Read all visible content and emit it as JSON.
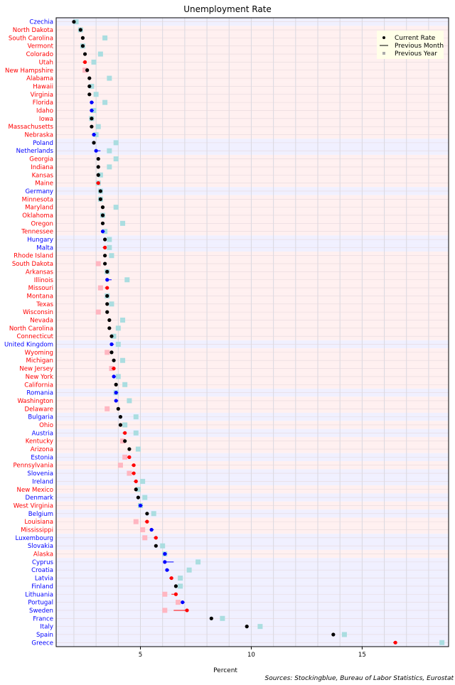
{
  "chart_data": {
    "type": "scatter",
    "title": "Unemployment Rate",
    "xlabel": "Percent",
    "ylabel": "",
    "xlim": [
      1.2,
      18.9
    ],
    "xticks": [
      5,
      10,
      15
    ],
    "grid": true,
    "legend_position": "top-right",
    "legend": [
      "Current Rate",
      "Previous Month",
      "Previous Year"
    ],
    "source": "Sources: Stockingblue, Bureau of Labor Statistics, Eurostat",
    "colors": {
      "us_label": "#ff0000",
      "eu_label": "#0000ff",
      "us_band": "#fff0f0",
      "eu_band": "#f0f0ff",
      "increase": "#ff0000",
      "decrease": "#0000ff",
      "unchanged": "#000000",
      "prev_year_higher": "#aadde0",
      "prev_year_lower": "#ffb6c1"
    },
    "categories": [
      "Czechia",
      "North Dakota",
      "South Carolina",
      "Vermont",
      "Colorado",
      "Utah",
      "New Hampshire",
      "Alabama",
      "Hawaii",
      "Virginia",
      "Florida",
      "Idaho",
      "Iowa",
      "Massachusetts",
      "Nebraska",
      "Poland",
      "Netherlands",
      "Georgia",
      "Indiana",
      "Kansas",
      "Maine",
      "Germany",
      "Minnesota",
      "Maryland",
      "Oklahoma",
      "Oregon",
      "Tennessee",
      "Hungary",
      "Malta",
      "Rhode Island",
      "South Dakota",
      "Arkansas",
      "Illinois",
      "Missouri",
      "Montana",
      "Texas",
      "Wisconsin",
      "Nevada",
      "North Carolina",
      "Connecticut",
      "United Kingdom",
      "Wyoming",
      "Michigan",
      "New Jersey",
      "New York",
      "California",
      "Romania",
      "Washington",
      "Delaware",
      "Bulgaria",
      "Ohio",
      "Austria",
      "Kentucky",
      "Arizona",
      "Estonia",
      "Pennsylvania",
      "Slovenia",
      "Ireland",
      "New Mexico",
      "Denmark",
      "West Virginia",
      "Belgium",
      "Louisiana",
      "Mississippi",
      "Luxembourg",
      "Slovakia",
      "Alaska",
      "Cyprus",
      "Croatia",
      "Latvia",
      "Finland",
      "Lithuania",
      "Portugal",
      "Sweden",
      "France",
      "Italy",
      "Spain",
      "Greece"
    ],
    "region": [
      "eu",
      "us",
      "us",
      "us",
      "us",
      "us",
      "us",
      "us",
      "us",
      "us",
      "us",
      "us",
      "us",
      "us",
      "us",
      "eu",
      "eu",
      "us",
      "us",
      "us",
      "us",
      "eu",
      "us",
      "us",
      "us",
      "us",
      "us",
      "eu",
      "eu",
      "us",
      "us",
      "us",
      "us",
      "us",
      "us",
      "us",
      "us",
      "us",
      "us",
      "us",
      "eu",
      "us",
      "us",
      "us",
      "us",
      "us",
      "eu",
      "us",
      "us",
      "eu",
      "us",
      "eu",
      "us",
      "us",
      "eu",
      "us",
      "eu",
      "eu",
      "us",
      "eu",
      "us",
      "eu",
      "us",
      "us",
      "eu",
      "eu",
      "us",
      "eu",
      "eu",
      "eu",
      "eu",
      "eu",
      "eu",
      "eu",
      "eu",
      "eu",
      "eu",
      "eu"
    ],
    "series": [
      {
        "name": "Current Rate",
        "values": [
          2.0,
          2.3,
          2.4,
          2.4,
          2.5,
          2.5,
          2.6,
          2.7,
          2.7,
          2.7,
          2.8,
          2.8,
          2.8,
          2.8,
          2.9,
          2.9,
          3.0,
          3.1,
          3.1,
          3.1,
          3.1,
          3.2,
          3.2,
          3.3,
          3.3,
          3.3,
          3.3,
          3.4,
          3.4,
          3.4,
          3.4,
          3.5,
          3.5,
          3.5,
          3.5,
          3.5,
          3.5,
          3.6,
          3.6,
          3.7,
          3.7,
          3.7,
          3.8,
          3.8,
          3.8,
          3.9,
          3.9,
          3.9,
          4.0,
          4.1,
          4.1,
          4.3,
          4.3,
          4.5,
          4.5,
          4.7,
          4.7,
          4.8,
          4.8,
          4.9,
          5.0,
          5.3,
          5.3,
          5.5,
          5.7,
          5.7,
          6.1,
          6.1,
          6.2,
          6.4,
          6.6,
          6.6,
          6.9,
          7.1,
          8.2,
          9.8,
          13.7,
          16.5
        ]
      },
      {
        "name": "Previous Month",
        "values": [
          2.0,
          2.3,
          2.4,
          2.4,
          2.5,
          2.4,
          2.6,
          2.7,
          2.7,
          2.7,
          2.9,
          2.9,
          2.8,
          2.8,
          3.0,
          2.9,
          3.2,
          3.1,
          3.1,
          3.1,
          3.0,
          3.2,
          3.2,
          3.3,
          3.3,
          3.3,
          3.4,
          3.4,
          3.3,
          3.4,
          3.4,
          3.5,
          3.7,
          3.4,
          3.5,
          3.5,
          3.5,
          3.6,
          3.6,
          3.7,
          3.8,
          3.7,
          3.8,
          3.7,
          3.9,
          3.9,
          4.0,
          4.0,
          4.0,
          4.1,
          4.1,
          4.2,
          4.3,
          4.5,
          4.4,
          4.6,
          4.6,
          4.7,
          4.8,
          4.9,
          5.1,
          5.3,
          5.2,
          5.6,
          5.6,
          5.7,
          6.2,
          6.5,
          6.3,
          6.3,
          6.6,
          6.4,
          7.0,
          6.5,
          8.2,
          9.8,
          13.7,
          16.4
        ]
      },
      {
        "name": "Previous Year",
        "values": [
          2.1,
          2.3,
          3.4,
          2.4,
          3.2,
          2.9,
          2.5,
          3.6,
          2.8,
          3.0,
          3.4,
          2.9,
          2.8,
          3.1,
          3.0,
          3.9,
          3.6,
          3.9,
          3.6,
          3.2,
          3.1,
          3.2,
          3.2,
          3.9,
          3.3,
          4.2,
          3.4,
          3.6,
          3.6,
          3.7,
          3.1,
          3.5,
          4.4,
          3.2,
          3.5,
          3.7,
          3.1,
          4.2,
          4.0,
          3.8,
          4.0,
          3.5,
          4.2,
          3.7,
          4.0,
          4.3,
          3.9,
          4.5,
          3.5,
          4.8,
          4.3,
          4.8,
          4.2,
          4.9,
          4.3,
          4.1,
          4.5,
          5.1,
          4.9,
          5.2,
          5.0,
          5.6,
          4.8,
          5.1,
          5.2,
          6.0,
          6.1,
          7.6,
          7.2,
          6.8,
          6.8,
          6.1,
          6.7,
          6.1,
          8.7,
          10.4,
          14.2,
          18.6
        ]
      }
    ]
  }
}
